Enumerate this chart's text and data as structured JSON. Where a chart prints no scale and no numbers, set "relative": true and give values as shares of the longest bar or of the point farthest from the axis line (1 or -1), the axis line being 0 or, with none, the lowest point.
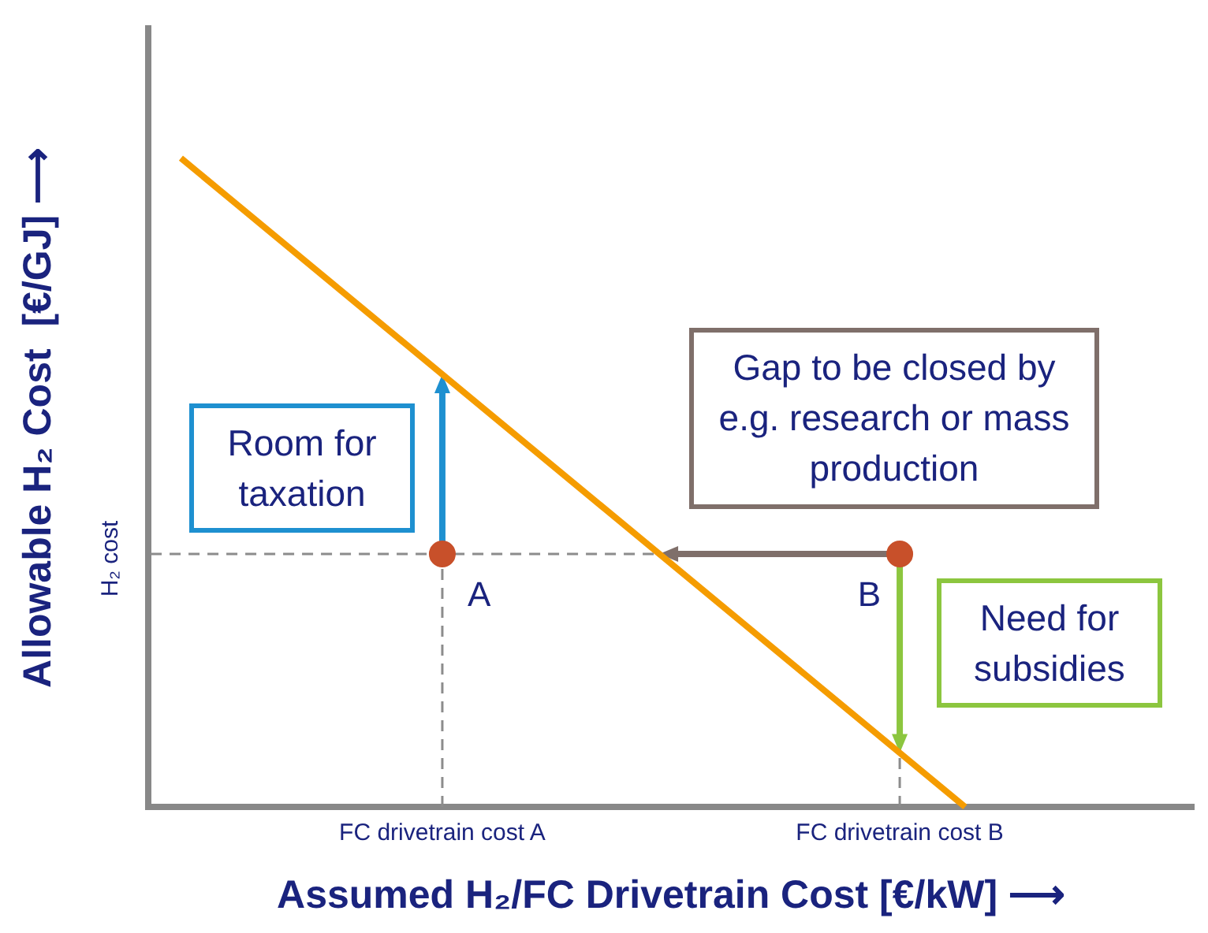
{
  "chart_data": {
    "type": "line",
    "relative": true,
    "xlabel": "Assumed H₂/FC Drivetrain Cost [€/kW] ⟶",
    "ylabel": "Allowable H₂ Cost  [€/GJ] ⟶",
    "categories": [
      null,
      null,
      null,
      null,
      "FC drivetrain cost A",
      null,
      null,
      null,
      null,
      null,
      null,
      "FC drivetrain cost B",
      null,
      null,
      null,
      null
    ],
    "tick_labels": "x",
    "legend": false,
    "series": [
      {
        "color": "#f59c00",
        "values": [
          1,
          null,
          null,
          null,
          null,
          null,
          null,
          null,
          null,
          null,
          null,
          null,
          0,
          null,
          null,
          null
        ]
      },
      {
        "type": "scatter",
        "color": "#c8502a",
        "marker": "circle",
        "x": [
          "FC drivetrain cost A",
          "FC drivetrain cost B"
        ],
        "values": [
          0.39,
          0.39
        ]
      }
    ],
    "annotations": [
      "H₂ cost",
      {
        "text": "A",
        "x": "FC drivetrain cost A",
        "y": 0.39
      },
      {
        "text": "B",
        "x": "FC drivetrain cost B",
        "y": 0.39
      },
      "Room for taxation",
      "Gap to be closed by e.g. research or mass production",
      "Need for subsidies"
    ]
  }
}
